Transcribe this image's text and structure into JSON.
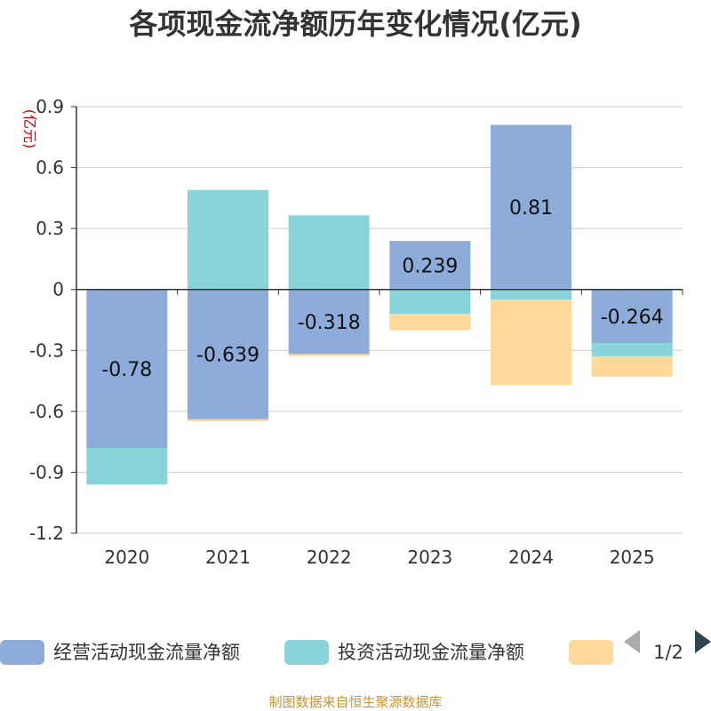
{
  "chart_data": {
    "type": "bar",
    "stacked": true,
    "title": "各项现金流净额历年变化情况(亿元)",
    "ylabel": "(亿元)",
    "ylim": [
      -1.2,
      0.9
    ],
    "yticks": [
      0.9,
      0.6,
      0.3,
      0,
      -0.3,
      -0.6,
      -0.9,
      -1.2
    ],
    "ytick_labels": [
      "0.9",
      "0.6",
      "0.3",
      "0",
      "-0.3",
      "-0.6",
      "-0.9",
      "-1.2"
    ],
    "categories": [
      "2020",
      "2021",
      "2022",
      "2023",
      "2024",
      "2025"
    ],
    "series": [
      {
        "name": "经营活动现金流量净额",
        "color": "#8eacd9",
        "values": [
          -0.78,
          -0.639,
          -0.318,
          0.239,
          0.81,
          -0.264
        ],
        "labels": [
          "-0.78",
          "-0.639",
          "-0.318",
          "0.239",
          "0.81",
          "-0.264"
        ]
      },
      {
        "name": "投资活动现金流量净额",
        "color": "#88d4d8",
        "values": [
          -0.18,
          0.49,
          0.365,
          -0.12,
          -0.05,
          -0.065
        ]
      },
      {
        "name": "",
        "color": "#fed99a",
        "values": [
          0,
          -0.01,
          -0.01,
          -0.08,
          -0.42,
          -0.1
        ]
      }
    ],
    "grid": true,
    "legend_position": "bottom"
  },
  "legend": {
    "pager_label": "1/2"
  },
  "source_text": "制图数据来自恒生聚源数据库"
}
